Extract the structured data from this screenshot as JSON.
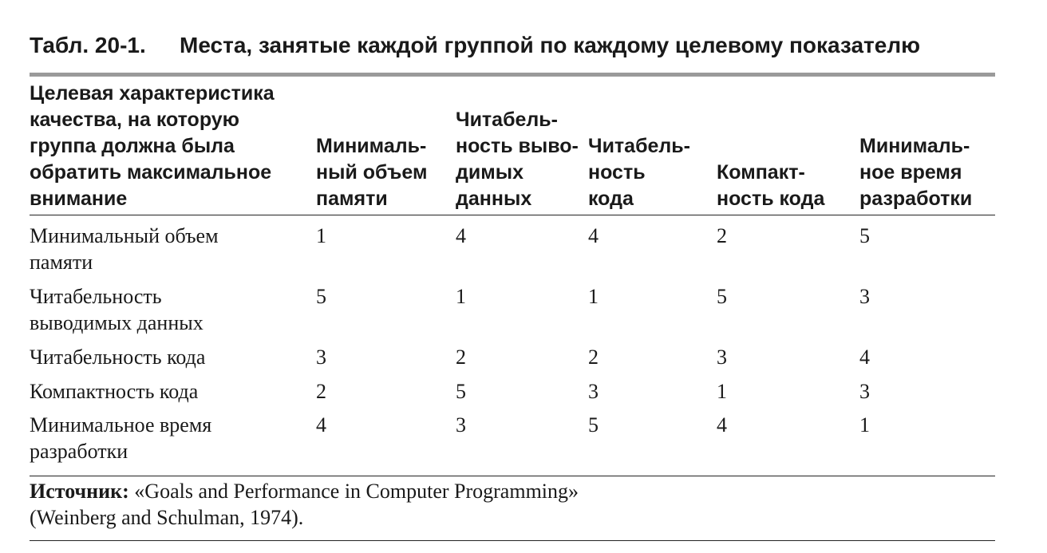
{
  "caption": {
    "number": "Табл. 20-1.",
    "title": "Места, занятые каждой группой по каждому целевому показателю"
  },
  "table": {
    "headers": [
      "Целевая характеристика\nкачества, на которую\nгруппа должна была\nобратить максимальное\nвнимание",
      "Минималь-\nный объем\nпамяти",
      "Читабель-\nность выво-\nдимых\nданных",
      "Читабель-\nность\nкода",
      "Компакт-\nность кода",
      "Минималь-\nное время\nразработки"
    ],
    "rows": [
      [
        "Минимальный объем\nпамяти",
        "1",
        "4",
        "4",
        "2",
        "5"
      ],
      [
        "Читабельность\nвыводимых данных",
        "5",
        "1",
        "1",
        "5",
        "3"
      ],
      [
        "Читабельность кода",
        "3",
        "2",
        "2",
        "3",
        "4"
      ],
      [
        "Компактность кода",
        "2",
        "5",
        "3",
        "1",
        "3"
      ],
      [
        "Минимальное время\nразработки",
        "4",
        "3",
        "5",
        "4",
        "1"
      ]
    ]
  },
  "source": {
    "label": "Источник:",
    "text": " «Goals and Performance in Computer Programming»\n(Weinberg and Schulman, 1974)."
  }
}
